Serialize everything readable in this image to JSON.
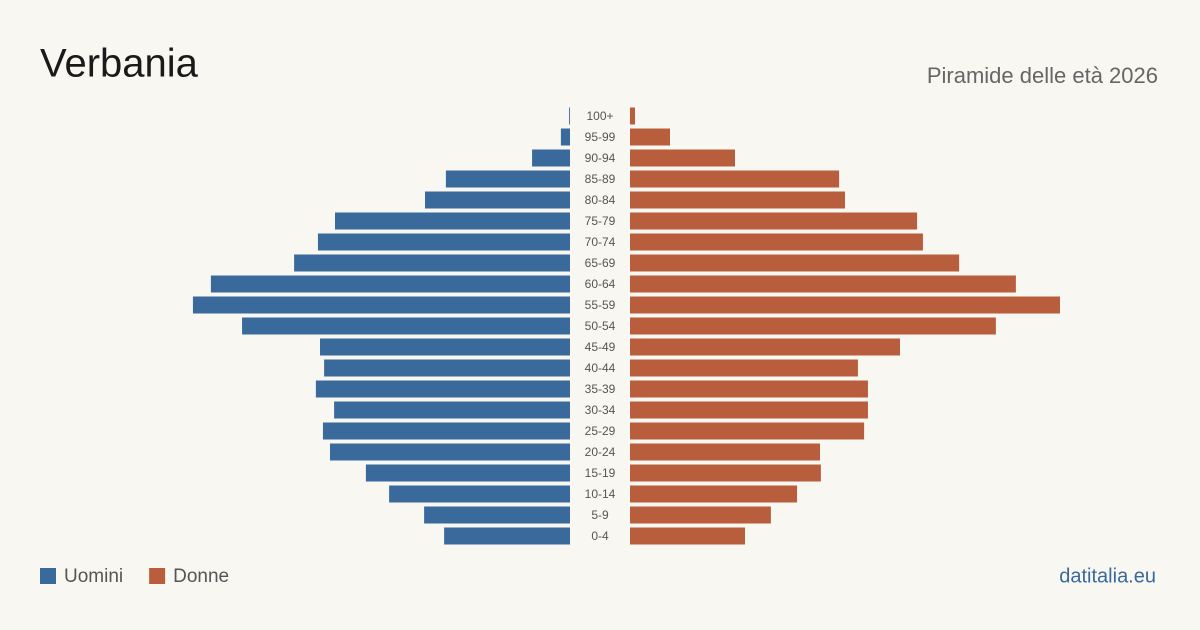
{
  "chart_data": {
    "type": "pyramid",
    "title": "Verbania",
    "subtitle": "Piramide delle età 2026",
    "source": "datitalia.eu",
    "categories": [
      "0-4",
      "5-9",
      "10-14",
      "15-19",
      "20-24",
      "25-29",
      "30-34",
      "35-39",
      "40-44",
      "45-49",
      "50-54",
      "55-59",
      "60-64",
      "65-69",
      "70-74",
      "75-79",
      "80-84",
      "85-89",
      "90-94",
      "95-99",
      "100+"
    ],
    "series": [
      {
        "name": "Uomini",
        "color": "#3a6a9c",
        "values": [
          428,
          496,
          615,
          694,
          816,
          840,
          802,
          864,
          836,
          850,
          1115,
          1282,
          1221,
          938,
          857,
          799,
          493,
          422,
          129,
          31,
          3
        ]
      },
      {
        "name": "Donne",
        "color": "#b95e3c",
        "values": [
          391,
          479,
          568,
          649,
          646,
          796,
          809,
          809,
          775,
          918,
          1244,
          1462,
          1312,
          1119,
          996,
          976,
          731,
          711,
          357,
          136,
          17
        ]
      }
    ]
  }
}
